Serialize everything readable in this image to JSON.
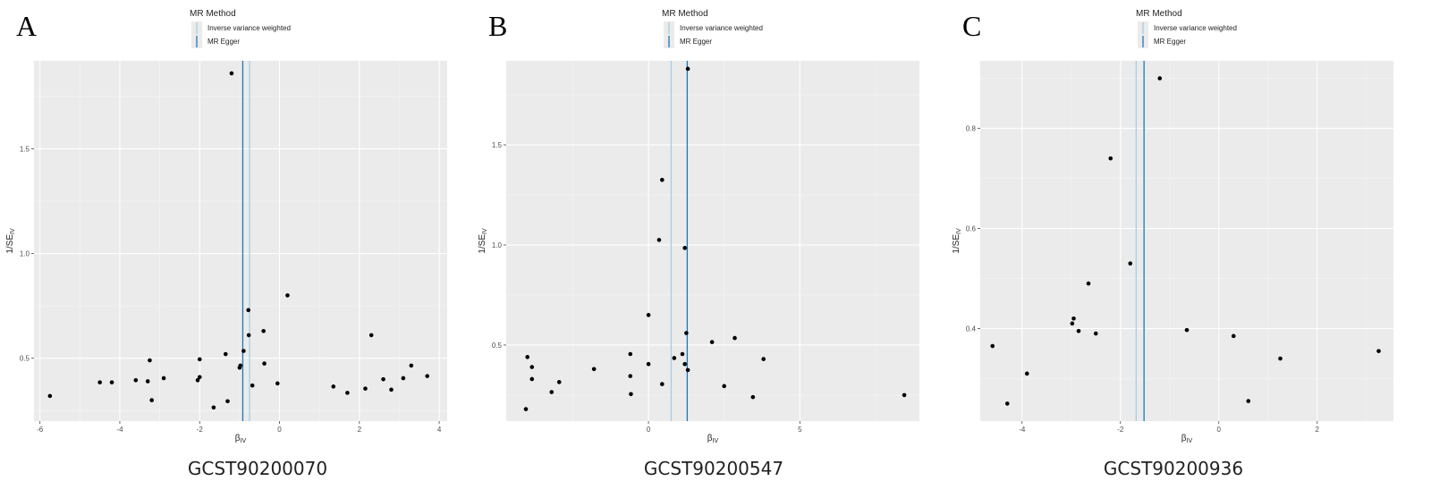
{
  "legend": {
    "title": "MR Method",
    "items": [
      {
        "label": "Inverse variance weighted",
        "color": "#a6cee3"
      },
      {
        "label": "MR Egger",
        "color": "#1f78b4"
      }
    ]
  },
  "chart_data": [
    {
      "type": "scatter",
      "panel_letter": "A",
      "caption": "GCST90200070",
      "xlabel": "β",
      "xlabel_sub": "IV",
      "ylabel": "1/SE",
      "ylabel_sub": "IV",
      "xlim": [
        -6.15,
        4.2
      ],
      "ylim": [
        0.2,
        1.92
      ],
      "xticks": [
        -6,
        -4,
        -2,
        0,
        2,
        4
      ],
      "yticks": [
        0.5,
        1.0,
        1.5
      ],
      "yticklabels": [
        "0.5",
        "1.0",
        "1.5"
      ],
      "grid": true,
      "lines": {
        "ivw": -0.75,
        "egger": -0.92
      },
      "points": [
        [
          -5.75,
          0.32
        ],
        [
          -4.5,
          0.385
        ],
        [
          -4.2,
          0.385
        ],
        [
          -3.6,
          0.395
        ],
        [
          -3.3,
          0.39
        ],
        [
          -3.25,
          0.49
        ],
        [
          -3.2,
          0.3
        ],
        [
          -2.9,
          0.405
        ],
        [
          -2.05,
          0.395
        ],
        [
          -2.0,
          0.495
        ],
        [
          -2.0,
          0.41
        ],
        [
          -1.65,
          0.265
        ],
        [
          -1.35,
          0.52
        ],
        [
          -1.3,
          0.295
        ],
        [
          -1.2,
          1.86
        ],
        [
          -1.0,
          0.455
        ],
        [
          -0.98,
          0.465
        ],
        [
          -0.9,
          0.535
        ],
        [
          -0.78,
          0.73
        ],
        [
          -0.77,
          0.61
        ],
        [
          -0.68,
          0.37
        ],
        [
          -0.4,
          0.63
        ],
        [
          -0.38,
          0.475
        ],
        [
          -0.05,
          0.38
        ],
        [
          0.2,
          0.8
        ],
        [
          1.35,
          0.365
        ],
        [
          1.7,
          0.335
        ],
        [
          2.15,
          0.355
        ],
        [
          2.3,
          0.61
        ],
        [
          2.6,
          0.4
        ],
        [
          2.8,
          0.35
        ],
        [
          3.1,
          0.405
        ],
        [
          3.3,
          0.465
        ],
        [
          3.7,
          0.415
        ]
      ]
    },
    {
      "type": "scatter",
      "panel_letter": "B",
      "caption": "GCST90200547",
      "xlabel": "β",
      "xlabel_sub": "IV",
      "ylabel": "1/SE",
      "ylabel_sub": "IV",
      "xlim": [
        -4.7,
        8.95
      ],
      "ylim": [
        0.12,
        1.92
      ],
      "xticks": [
        0,
        5
      ],
      "yticks": [
        0.5,
        1.0,
        1.5
      ],
      "yticklabels": [
        "0.5",
        "1.0",
        "1.5"
      ],
      "grid": true,
      "lines": {
        "ivw": 0.75,
        "egger": 1.28
      },
      "points": [
        [
          -4.0,
          0.44
        ],
        [
          -4.05,
          0.18
        ],
        [
          -3.85,
          0.39
        ],
        [
          -3.85,
          0.33
        ],
        [
          -3.2,
          0.265
        ],
        [
          -2.95,
          0.315
        ],
        [
          -1.8,
          0.38
        ],
        [
          -0.6,
          0.455
        ],
        [
          -0.6,
          0.345
        ],
        [
          -0.58,
          0.255
        ],
        [
          0.0,
          0.65
        ],
        [
          0.0,
          0.405
        ],
        [
          0.35,
          1.025
        ],
        [
          0.45,
          0.305
        ],
        [
          0.45,
          1.325
        ],
        [
          0.85,
          0.435
        ],
        [
          1.12,
          0.455
        ],
        [
          1.2,
          0.985
        ],
        [
          1.2,
          0.405
        ],
        [
          1.25,
          0.56
        ],
        [
          1.3,
          1.88
        ],
        [
          1.3,
          0.375
        ],
        [
          2.1,
          0.515
        ],
        [
          2.5,
          0.295
        ],
        [
          2.85,
          0.535
        ],
        [
          3.45,
          0.24
        ],
        [
          3.8,
          0.43
        ],
        [
          8.45,
          0.25
        ]
      ]
    },
    {
      "type": "scatter",
      "panel_letter": "C",
      "caption": "GCST90200936",
      "xlabel": "β",
      "xlabel_sub": "IV",
      "ylabel": "1/SE",
      "ylabel_sub": "IV",
      "xlim": [
        -4.85,
        3.55
      ],
      "ylim": [
        0.215,
        0.935
      ],
      "xticks": [
        -4,
        -2,
        0,
        2
      ],
      "yticks": [
        0.4,
        0.6,
        0.8
      ],
      "yticklabels": [
        "0.4",
        "0.6",
        "0.8"
      ],
      "grid": true,
      "lines": {
        "ivw": -1.68,
        "egger": -1.52
      },
      "points": [
        [
          -4.6,
          0.365
        ],
        [
          -4.3,
          0.25
        ],
        [
          -3.9,
          0.31
        ],
        [
          -2.95,
          0.42
        ],
        [
          -2.98,
          0.41
        ],
        [
          -2.85,
          0.395
        ],
        [
          -2.65,
          0.49
        ],
        [
          -2.5,
          0.39
        ],
        [
          -2.2,
          0.74
        ],
        [
          -1.8,
          0.53
        ],
        [
          -1.2,
          0.9
        ],
        [
          -0.65,
          0.397
        ],
        [
          0.3,
          0.385
        ],
        [
          0.6,
          0.255
        ],
        [
          1.25,
          0.34
        ],
        [
          3.25,
          0.355
        ]
      ]
    }
  ]
}
